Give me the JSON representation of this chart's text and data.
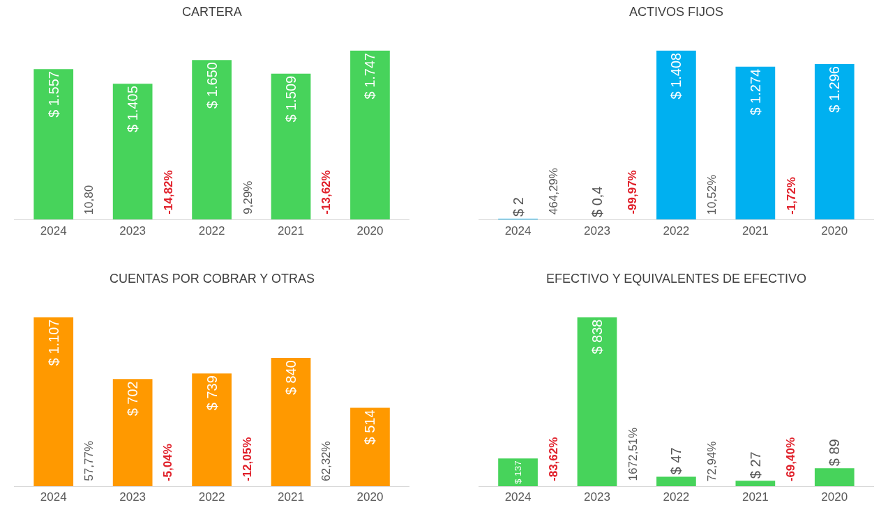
{
  "chart_data": [
    {
      "type": "bar",
      "title": "CARTERA",
      "categories": [
        "2024",
        "2023",
        "2022",
        "2021",
        "2020"
      ],
      "values": [
        1557,
        1405,
        1650,
        1509,
        1747
      ],
      "color": "#47d35b",
      "value_labels": [
        "$ 1.557",
        "$ 1.405",
        "$ 1.650",
        "$ 1.509",
        "$ 1.747"
      ],
      "annotations": [
        "10,80",
        "-14,82%",
        "9,29%",
        "-13,62%"
      ]
    },
    {
      "type": "bar",
      "title": "ACTIVOS FIJOS",
      "categories": [
        "2024",
        "2023",
        "2022",
        "2021",
        "2020"
      ],
      "values": [
        2,
        0.4,
        1408,
        1274,
        1296
      ],
      "color": "#00b0f0",
      "value_labels": [
        "$ 2",
        "$ 0,4",
        "$ 1.408",
        "$ 1.274",
        "$ 1.296"
      ],
      "annotations": [
        "464,29%",
        "-99,97%",
        "10,52%",
        "-1,72%"
      ]
    },
    {
      "type": "bar",
      "title": "CUENTAS POR COBRAR Y OTRAS",
      "categories": [
        "2024",
        "2023",
        "2022",
        "2021",
        "2020"
      ],
      "values": [
        1107,
        702,
        739,
        840,
        514
      ],
      "color": "#ff9900",
      "value_labels": [
        "$ 1.107",
        "$ 702",
        "$ 739",
        "$ 840",
        "$ 514"
      ],
      "annotations": [
        "57,77%",
        "-5,04%",
        "-12,05%",
        "62,32%"
      ]
    },
    {
      "type": "bar",
      "title": "EFECTIVO Y EQUIVALENTES DE EFECTIVO",
      "categories": [
        "2024",
        "2023",
        "2022",
        "2021",
        "2020"
      ],
      "values": [
        137,
        838,
        47,
        27,
        89
      ],
      "color": "#47d35b",
      "value_labels": [
        "$ 137",
        "$ 838",
        "$ 47",
        "$ 27",
        "$ 89"
      ],
      "annotations": [
        "-83,62%",
        "1672,51%",
        "72,94%",
        "-69,40%"
      ]
    }
  ]
}
